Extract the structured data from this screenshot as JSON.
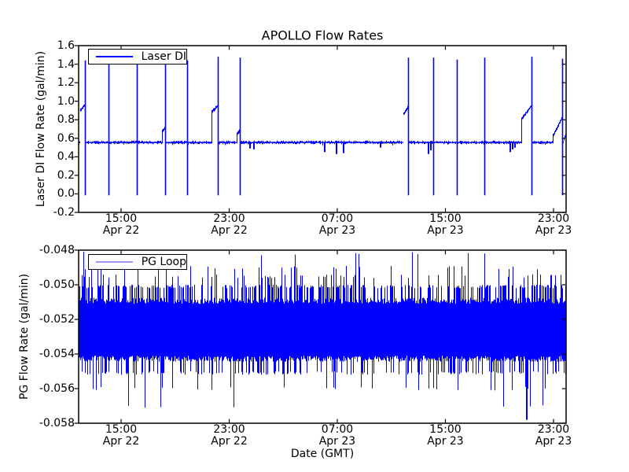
{
  "figure": {
    "title": "APOLLO Flow Rates",
    "xlabel": "Date (GMT)",
    "background_color": "#ffffff",
    "line_blue": "#0000ff"
  },
  "chart_data": [
    {
      "type": "line",
      "name": "laser-di-flow",
      "title": "APOLLO Flow Rates",
      "ylabel": "Laser DI Flow Rate (gal/min)",
      "legend": {
        "label": "Laser DI",
        "line_color": "#0000ff"
      },
      "line_color": "#0000ff",
      "ylim": [
        -0.2,
        1.6
      ],
      "ytick_labels": [
        "1.6",
        "1.4",
        "1.2",
        "1.0",
        "0.8",
        "0.6",
        "0.4",
        "0.2",
        "0.0",
        "-0.2"
      ],
      "yticks": [
        1.6,
        1.4,
        1.2,
        1.0,
        0.8,
        0.6,
        0.4,
        0.2,
        0.0,
        -0.2
      ],
      "xticks": [
        {
          "frac": 0.0871,
          "time": "15:00",
          "date": "Apr 22"
        },
        {
          "frac": 0.3089,
          "time": "23:00",
          "date": "Apr 22"
        },
        {
          "frac": 0.5306,
          "time": "07:00",
          "date": "Apr 23"
        },
        {
          "frac": 0.7524,
          "time": "15:00",
          "date": "Apr 23"
        },
        {
          "frac": 0.9742,
          "time": "23:00",
          "date": "Apr 23"
        }
      ],
      "baseline": {
        "level": 0.555,
        "noise": 0.015
      },
      "full_spikes": [
        {
          "f": 0.0129,
          "top": 1.44,
          "bottom": -0.015
        },
        {
          "f": 0.0613,
          "top": 1.47,
          "bottom": -0.015
        },
        {
          "f": 0.1194,
          "top": 1.47,
          "bottom": -0.015
        },
        {
          "f": 0.1774,
          "top": 1.45,
          "bottom": -0.015
        },
        {
          "f": 0.2226,
          "top": 1.44,
          "bottom": -0.015
        },
        {
          "f": 0.2855,
          "top": 1.48,
          "bottom": -0.015
        },
        {
          "f": 0.3306,
          "top": 1.47,
          "bottom": -0.015
        },
        {
          "f": 0.6758,
          "top": 1.47,
          "bottom": -0.015
        },
        {
          "f": 0.7274,
          "top": 1.47,
          "bottom": -0.015
        },
        {
          "f": 0.7758,
          "top": 1.45,
          "bottom": -0.015
        },
        {
          "f": 0.8323,
          "top": 1.47,
          "bottom": -0.015
        },
        {
          "f": 0.929,
          "top": 1.48,
          "bottom": -0.015
        },
        {
          "f": 0.9919,
          "top": 1.46,
          "bottom": -0.015
        }
      ],
      "bumps": [
        {
          "f0": 0.0032,
          "f1": 0.0129,
          "v0": 0.9,
          "v1": 0.96
        },
        {
          "f0": 0.171,
          "f1": 0.1774,
          "v0": 0.68,
          "v1": 0.71
        },
        {
          "f0": 0.2726,
          "f1": 0.2855,
          "v0": 0.88,
          "v1": 0.95
        },
        {
          "f0": 0.3242,
          "f1": 0.3306,
          "v0": 0.64,
          "v1": 0.68
        },
        {
          "f0": 0.6661,
          "f1": 0.6758,
          "v0": 0.86,
          "v1": 0.93
        },
        {
          "f0": 0.9081,
          "f1": 0.929,
          "v0": 0.8,
          "v1": 0.95
        },
        {
          "f0": 0.9726,
          "f1": 0.9919,
          "v0": 0.62,
          "v1": 0.82
        },
        {
          "f0": 0.995,
          "f1": 1.0,
          "v0": 0.58,
          "v1": 0.64
        }
      ],
      "dips": [
        {
          "f": 0.3516,
          "v": 0.49
        },
        {
          "f": 0.3597,
          "v": 0.48
        },
        {
          "f": 0.5048,
          "v": 0.45
        },
        {
          "f": 0.529,
          "v": 0.43
        },
        {
          "f": 0.5435,
          "v": 0.44
        },
        {
          "f": 0.6194,
          "v": 0.5
        },
        {
          "f": 0.7177,
          "v": 0.43
        },
        {
          "f": 0.7226,
          "v": 0.47
        },
        {
          "f": 0.8855,
          "v": 0.45
        },
        {
          "f": 0.8903,
          "v": 0.48
        },
        {
          "f": 0.8952,
          "v": 0.5
        }
      ],
      "noise_seed": 1337
    },
    {
      "type": "line",
      "name": "pg-loop-flow",
      "ylabel": "PG Flow Rate (gal/min)",
      "xlabel": "Date (GMT)",
      "legend": {
        "label": "PG Loop",
        "line_color": "#9a9af0"
      },
      "line_color": "#0000ff",
      "ylim": [
        -0.058,
        -0.048
      ],
      "ytick_labels": [
        "-0.048",
        "-0.050",
        "-0.052",
        "-0.054",
        "-0.056",
        "-0.058"
      ],
      "yticks": [
        -0.048,
        -0.05,
        -0.052,
        -0.054,
        -0.056,
        -0.058
      ],
      "xticks": [
        {
          "frac": 0.0871,
          "time": "15:00",
          "date": "Apr 22"
        },
        {
          "frac": 0.3089,
          "time": "23:00",
          "date": "Apr 22"
        },
        {
          "frac": 0.5306,
          "time": "07:00",
          "date": "Apr 23"
        },
        {
          "frac": 0.7524,
          "time": "15:00",
          "date": "Apr 23"
        },
        {
          "frac": 0.9742,
          "time": "23:00",
          "date": "Apr 23"
        }
      ],
      "band": {
        "hi": -0.0511,
        "lo": -0.0541,
        "jitter": 0.00035
      },
      "up_levels": [
        {
          "v": -0.0481,
          "p": 0.018
        },
        {
          "v": -0.0489,
          "p": 0.047
        },
        {
          "v": -0.0494,
          "p": 0.095
        },
        {
          "v": -0.05,
          "p": 0.31
        }
      ],
      "down_levels": [
        {
          "v": -0.0569,
          "p": 0.014
        },
        {
          "v": -0.0559,
          "p": 0.046
        },
        {
          "v": -0.055,
          "p": 0.22
        }
      ],
      "extreme_dip": {
        "f": 0.919,
        "v": -0.0578
      },
      "noise_seed": 4242
    }
  ]
}
